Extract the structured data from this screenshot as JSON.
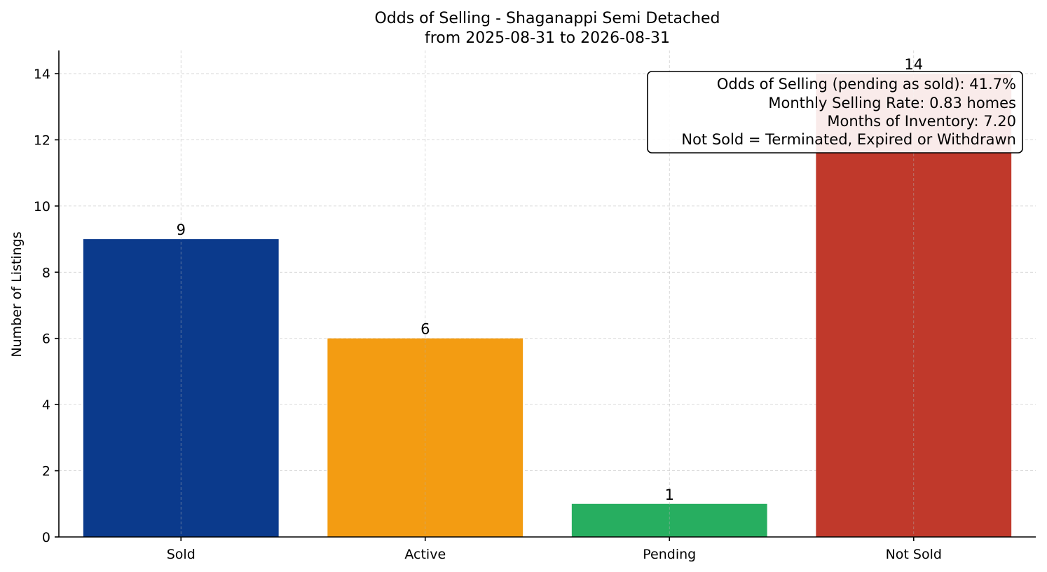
{
  "chart_data": {
    "type": "bar",
    "title": "Odds of Selling - Shaganappi Semi Detached",
    "subtitle": "from 2025-08-31 to 2026-08-31",
    "xlabel": "",
    "ylabel": "Number of Listings",
    "categories": [
      "Sold",
      "Active",
      "Pending",
      "Not Sold"
    ],
    "values": [
      9,
      6,
      1,
      14
    ],
    "colors": [
      "#0b3a8c",
      "#f39c12",
      "#27ae60",
      "#c0392b"
    ],
    "ylim": [
      0,
      14.7
    ],
    "yticks": [
      0,
      2,
      4,
      6,
      8,
      10,
      12,
      14
    ],
    "grid": true,
    "annotation": {
      "placement": "top-right",
      "lines": [
        "Odds of Selling (pending as sold): 41.7%",
        "Monthly Selling Rate: 0.83 homes",
        "Months of Inventory: 7.20",
        "Not Sold = Terminated, Expired or Withdrawn"
      ]
    }
  }
}
